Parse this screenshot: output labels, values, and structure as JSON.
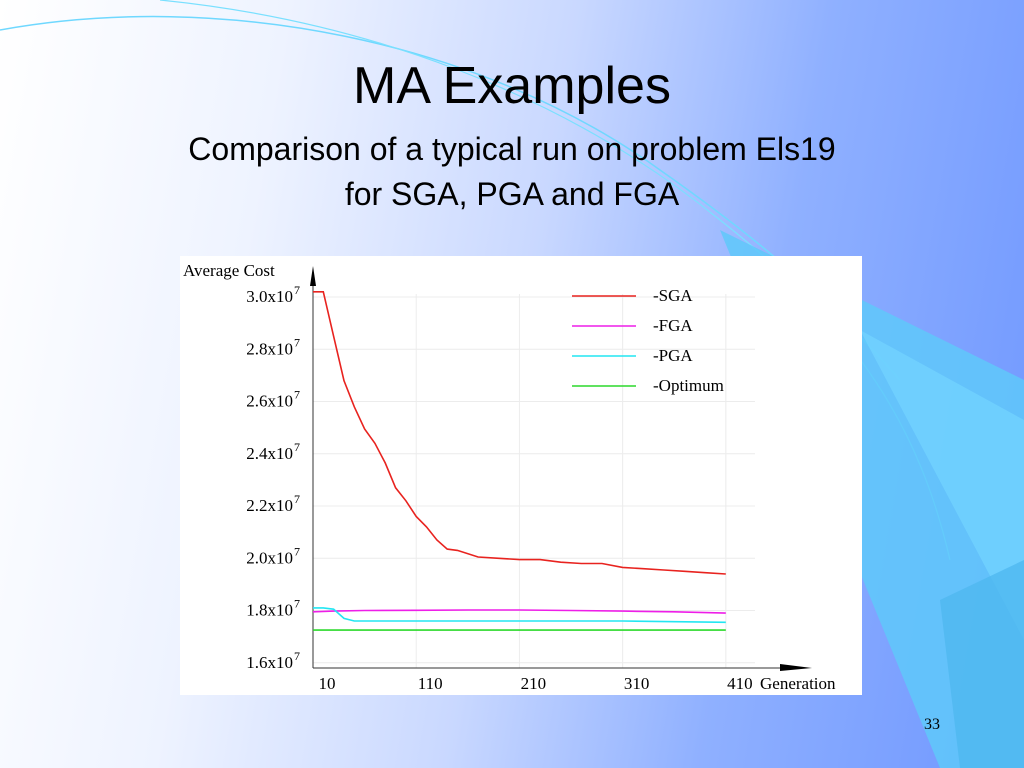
{
  "slide": {
    "title": "MA Examples",
    "subtitle_line1": "Comparison of a typical run on problem Els19",
    "subtitle_line2": "for SGA, PGA and FGA",
    "slide_number": "33"
  },
  "colors": {
    "SGA": "#e8231f",
    "FGA": "#ee1ee8",
    "PGA": "#22e6f2",
    "Optimum": "#2bd92b"
  },
  "chart_data": {
    "type": "line",
    "ylabel": "Average Cost",
    "xlabel": "Generation",
    "x_ticks": [
      "10",
      "110",
      "210",
      "310",
      "410"
    ],
    "y_ticks": [
      {
        "mantissa": "1.6x10",
        "exp": "7",
        "value": 16000000
      },
      {
        "mantissa": "1.8x10",
        "exp": "7",
        "value": 18000000
      },
      {
        "mantissa": "2.0x10",
        "exp": "7",
        "value": 20000000
      },
      {
        "mantissa": "2.2x10",
        "exp": "7",
        "value": 22000000
      },
      {
        "mantissa": "2.4x10",
        "exp": "7",
        "value": 24000000
      },
      {
        "mantissa": "2.6x10",
        "exp": "7",
        "value": 26000000
      },
      {
        "mantissa": "2.8x10",
        "exp": "7",
        "value": 28000000
      },
      {
        "mantissa": "3.0x10",
        "exp": "7",
        "value": 30000000
      }
    ],
    "xlim": [
      10,
      446
    ],
    "ylim": [
      15800000,
      30500000
    ],
    "legend_position": "top-right",
    "grid": false,
    "series": [
      {
        "name": "-SGA",
        "key": "SGA",
        "x": [
          10,
          20,
          30,
          40,
          50,
          60,
          70,
          80,
          90,
          100,
          110,
          120,
          130,
          140,
          150,
          170,
          190,
          210,
          230,
          250,
          270,
          290,
          310,
          330,
          350,
          370,
          390,
          410
        ],
        "y": [
          30200000,
          30200000,
          28500000,
          26800000,
          25800000,
          24950000,
          24400000,
          23650000,
          22700000,
          22200000,
          21600000,
          21200000,
          20700000,
          20350000,
          20300000,
          20050000,
          20000000,
          19950000,
          19950000,
          19850000,
          19800000,
          19800000,
          19650000,
          19600000,
          19550000,
          19500000,
          19450000,
          19400000
        ]
      },
      {
        "name": "-FGA",
        "key": "FGA",
        "x": [
          10,
          30,
          60,
          110,
          160,
          210,
          260,
          310,
          360,
          410
        ],
        "y": [
          17950000,
          17980000,
          18000000,
          18010000,
          18020000,
          18020000,
          18000000,
          17980000,
          17950000,
          17900000
        ]
      },
      {
        "name": "-PGA",
        "key": "PGA",
        "x": [
          10,
          20,
          30,
          40,
          50,
          70,
          110,
          210,
          310,
          410
        ],
        "y": [
          18100000,
          18100000,
          18050000,
          17700000,
          17600000,
          17600000,
          17600000,
          17600000,
          17600000,
          17550000
        ]
      },
      {
        "name": "-Optimum",
        "key": "Optimum",
        "x": [
          10,
          410
        ],
        "y": [
          17250000,
          17250000
        ]
      }
    ]
  }
}
